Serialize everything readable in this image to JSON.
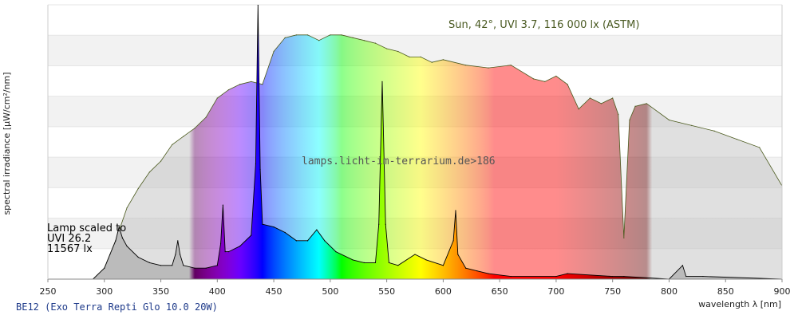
{
  "chart_data": {
    "type": "area",
    "title": "",
    "xlabel": "wavelength λ [nm]",
    "ylabel": "spectral irradiance [µW/cm²/nm]",
    "xlim": [
      250,
      900
    ],
    "x_ticks": [
      250,
      300,
      350,
      400,
      450,
      500,
      550,
      600,
      650,
      700,
      750,
      800,
      850,
      900
    ],
    "ylim": [
      0,
      1
    ],
    "grid": "horizontal bands",
    "annotations": {
      "sun": "Sun, 42°, UVI 3.7, 116 000 lx (ASTM)",
      "lamp_lines": [
        "Lamp scaled to",
        "UVI 26.2",
        "11567 lx"
      ],
      "watermark": "lamps.licht-im-terrarium.de>186"
    },
    "series": [
      {
        "name": "Sun, 42°, UVI 3.7, 116 000 lx (ASTM)",
        "x": [
          290,
          300,
          310,
          320,
          330,
          340,
          350,
          360,
          370,
          380,
          390,
          400,
          410,
          420,
          430,
          440,
          450,
          460,
          470,
          480,
          490,
          500,
          510,
          520,
          530,
          540,
          550,
          560,
          570,
          580,
          590,
          600,
          620,
          640,
          660,
          680,
          690,
          700,
          710,
          720,
          730,
          740,
          750,
          755,
          760,
          765,
          770,
          780,
          800,
          820,
          840,
          860,
          880,
          900
        ],
        "values": [
          0.0,
          0.04,
          0.14,
          0.26,
          0.33,
          0.39,
          0.43,
          0.49,
          0.52,
          0.55,
          0.59,
          0.66,
          0.69,
          0.71,
          0.72,
          0.71,
          0.83,
          0.88,
          0.89,
          0.89,
          0.87,
          0.89,
          0.89,
          0.88,
          0.87,
          0.86,
          0.84,
          0.83,
          0.81,
          0.81,
          0.79,
          0.8,
          0.78,
          0.77,
          0.78,
          0.73,
          0.72,
          0.74,
          0.71,
          0.62,
          0.66,
          0.64,
          0.66,
          0.6,
          0.15,
          0.58,
          0.63,
          0.64,
          0.58,
          0.56,
          0.54,
          0.51,
          0.48,
          0.34
        ]
      },
      {
        "name": "Lamp",
        "x": [
          290,
          300,
          305,
          310,
          313,
          316,
          320,
          330,
          340,
          350,
          360,
          363,
          365,
          367,
          370,
          380,
          390,
          400,
          403,
          405,
          407,
          410,
          420,
          430,
          434,
          436,
          438,
          440,
          450,
          460,
          470,
          480,
          488,
          495,
          505,
          520,
          530,
          540,
          543,
          546,
          549,
          552,
          560,
          575,
          585,
          600,
          609,
          611,
          613,
          620,
          630,
          640,
          660,
          700,
          710,
          750,
          760,
          800,
          812,
          815,
          830,
          900
        ],
        "values": [
          0.0,
          0.04,
          0.09,
          0.14,
          0.19,
          0.15,
          0.12,
          0.08,
          0.06,
          0.05,
          0.05,
          0.09,
          0.14,
          0.09,
          0.05,
          0.04,
          0.04,
          0.05,
          0.13,
          0.27,
          0.1,
          0.1,
          0.12,
          0.16,
          0.42,
          1.0,
          0.4,
          0.2,
          0.19,
          0.17,
          0.14,
          0.14,
          0.18,
          0.14,
          0.1,
          0.07,
          0.06,
          0.06,
          0.2,
          0.72,
          0.2,
          0.06,
          0.05,
          0.09,
          0.07,
          0.05,
          0.14,
          0.25,
          0.09,
          0.04,
          0.03,
          0.02,
          0.01,
          0.01,
          0.02,
          0.01,
          0.01,
          0.0,
          0.05,
          0.01,
          0.01,
          0.0
        ]
      }
    ]
  },
  "caption": "BE12 (Exo Terra Repti Glo 10.0 20W)"
}
